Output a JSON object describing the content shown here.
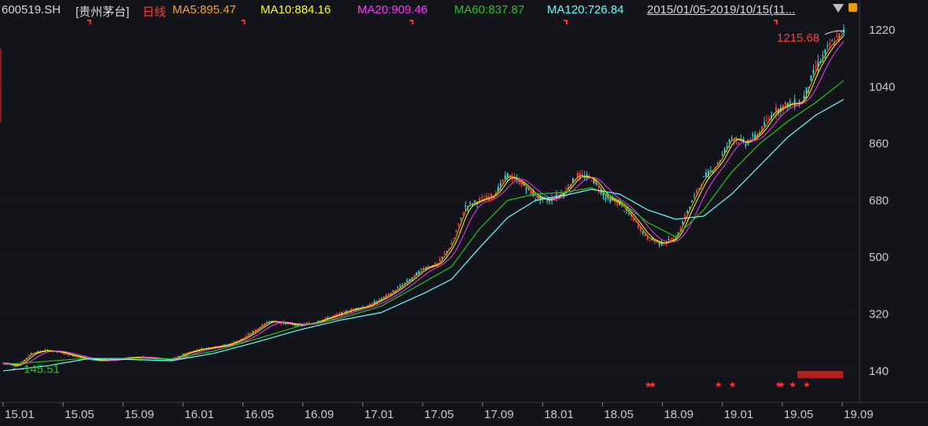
{
  "header": {
    "symbol": "600519.SH",
    "name": "[贵州茅台]",
    "period": "日线",
    "ma5": "MA5:895.47",
    "ma10": "MA10:884.16",
    "ma20": "MA20:909.46",
    "ma60": "MA60:837.87",
    "ma120": "MA120:726.84",
    "range": "2015/01/05-2019/10/15(11..."
  },
  "colors": {
    "background": "#131419",
    "symbol": "#d8d8d8",
    "period": "#ff3b3b",
    "ma5": "#ffa31a",
    "ma10": "#ffff00",
    "ma20": "#ff33ff",
    "ma60": "#22c522",
    "ma120": "#66ffff",
    "up": "#ff3b3b",
    "down": "#2ad3d3",
    "grid": "#2c2f38",
    "axis": "#c9c9c9",
    "marker": "#ff3030"
  },
  "icons": [
    "dropdown-triangle-icon",
    "lock-icon"
  ],
  "chart_data": {
    "type": "line",
    "y_ticks": [
      "140",
      "320",
      "500",
      "680",
      "860",
      "1040",
      "1220"
    ],
    "ylim": [
      40,
      1255
    ],
    "x_ticks": [
      "15.01",
      "15.05",
      "15.09",
      "16.01",
      "16.05",
      "16.09",
      "17.01",
      "17.05",
      "17.09",
      "18.01",
      "18.05",
      "18.09",
      "19.01",
      "19.05",
      "19.09"
    ],
    "high_label": "1215.68",
    "low_label": "145.51",
    "price": [
      [
        0,
        165
      ],
      [
        1,
        155
      ],
      [
        2,
        195
      ],
      [
        3,
        205
      ],
      [
        4,
        200
      ],
      [
        5,
        188
      ],
      [
        6,
        178
      ],
      [
        7,
        172
      ],
      [
        8,
        175
      ],
      [
        9,
        182
      ],
      [
        10,
        184
      ],
      [
        11,
        178
      ],
      [
        12,
        175
      ],
      [
        13,
        195
      ],
      [
        14,
        208
      ],
      [
        15,
        215
      ],
      [
        16,
        222
      ],
      [
        17,
        240
      ],
      [
        18,
        268
      ],
      [
        19,
        298
      ],
      [
        20,
        292
      ],
      [
        21,
        285
      ],
      [
        22,
        290
      ],
      [
        23,
        305
      ],
      [
        24,
        320
      ],
      [
        25,
        335
      ],
      [
        26,
        345
      ],
      [
        27,
        368
      ],
      [
        28,
        395
      ],
      [
        29,
        428
      ],
      [
        30,
        465
      ],
      [
        31,
        478
      ],
      [
        32,
        540
      ],
      [
        33,
        660
      ],
      [
        34,
        680
      ],
      [
        35,
        695
      ],
      [
        36,
        760
      ],
      [
        37,
        735
      ],
      [
        38,
        690
      ],
      [
        39,
        680
      ],
      [
        40,
        705
      ],
      [
        41,
        760
      ],
      [
        42,
        750
      ],
      [
        43,
        690
      ],
      [
        44,
        670
      ],
      [
        45,
        620
      ],
      [
        46,
        560
      ],
      [
        47,
        542
      ],
      [
        48,
        560
      ],
      [
        49,
        660
      ],
      [
        50,
        750
      ],
      [
        51,
        795
      ],
      [
        52,
        880
      ],
      [
        53,
        860
      ],
      [
        54,
        895
      ],
      [
        55,
        960
      ],
      [
        56,
        985
      ],
      [
        57,
        990
      ],
      [
        58,
        1100
      ],
      [
        59,
        1170
      ],
      [
        60,
        1215
      ]
    ],
    "series": [
      {
        "name": "MA60",
        "values": [
          [
            0,
            160
          ],
          [
            3,
            170
          ],
          [
            6,
            180
          ],
          [
            9,
            180
          ],
          [
            12,
            178
          ],
          [
            15,
            202
          ],
          [
            18,
            240
          ],
          [
            21,
            280
          ],
          [
            24,
            305
          ],
          [
            27,
            345
          ],
          [
            30,
            420
          ],
          [
            32,
            470
          ],
          [
            34,
            590
          ],
          [
            36,
            680
          ],
          [
            38,
            700
          ],
          [
            40,
            705
          ],
          [
            42,
            720
          ],
          [
            44,
            680
          ],
          [
            46,
            610
          ],
          [
            48,
            565
          ],
          [
            50,
            650
          ],
          [
            52,
            770
          ],
          [
            54,
            860
          ],
          [
            56,
            930
          ],
          [
            58,
            990
          ],
          [
            60,
            1060
          ]
        ]
      },
      {
        "name": "MA120",
        "values": [
          [
            0,
            140
          ],
          [
            3,
            155
          ],
          [
            6,
            178
          ],
          [
            9,
            176
          ],
          [
            12,
            172
          ],
          [
            15,
            195
          ],
          [
            18,
            230
          ],
          [
            21,
            268
          ],
          [
            24,
            300
          ],
          [
            27,
            325
          ],
          [
            30,
            385
          ],
          [
            32,
            430
          ],
          [
            34,
            530
          ],
          [
            36,
            625
          ],
          [
            38,
            680
          ],
          [
            40,
            695
          ],
          [
            42,
            715
          ],
          [
            44,
            700
          ],
          [
            46,
            650
          ],
          [
            48,
            620
          ],
          [
            50,
            630
          ],
          [
            52,
            700
          ],
          [
            54,
            790
          ],
          [
            56,
            880
          ],
          [
            58,
            950
          ],
          [
            60,
            1000
          ]
        ]
      }
    ],
    "markers": {
      "top_flags": [
        6,
        17,
        29,
        40,
        55
      ],
      "bottom_stars": [
        46,
        46.3,
        51,
        52,
        55.3,
        55.5,
        56.3,
        57.3
      ]
    }
  }
}
